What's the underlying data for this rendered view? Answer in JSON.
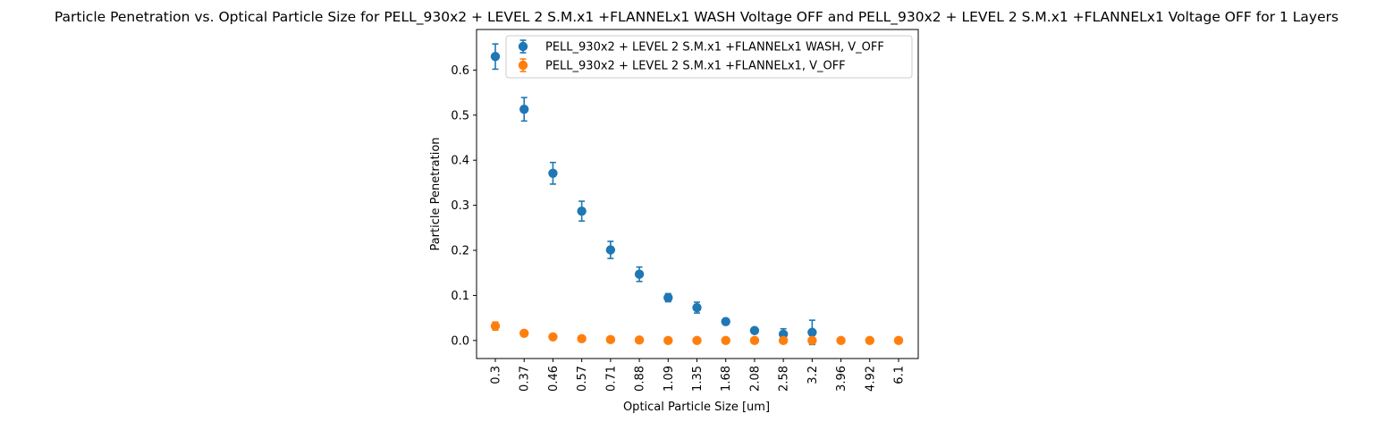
{
  "chart_data": {
    "type": "scatter",
    "title": "Particle Penetration vs. Optical Particle Size for PELL_930x2 + LEVEL 2 S.M.x1 +FLANNELx1 WASH Voltage OFF and PELL_930x2 + LEVEL 2 S.M.x1 +FLANNELx1 Voltage OFF for 1 Layers",
    "xlabel": "Optical Particle Size [um]",
    "ylabel": "Particle Penetration",
    "categories": [
      "0.3",
      "0.37",
      "0.46",
      "0.57",
      "0.71",
      "0.88",
      "1.09",
      "1.35",
      "1.68",
      "2.08",
      "2.58",
      "3.2",
      "3.96",
      "4.92",
      "6.1"
    ],
    "ylim": [
      -0.04,
      0.69
    ],
    "yticks": [
      "0.0",
      "0.1",
      "0.2",
      "0.3",
      "0.4",
      "0.5",
      "0.6"
    ],
    "legend_position": "top-right",
    "series": [
      {
        "name": "PELL_930x2 + LEVEL 2 S.M.x1 +FLANNELx1 WASH, V_OFF",
        "color": "#1f77b4",
        "values": [
          0.63,
          0.513,
          0.371,
          0.287,
          0.201,
          0.147,
          0.095,
          0.073,
          0.042,
          0.022,
          0.014,
          0.018,
          null,
          null,
          null
        ],
        "errors": [
          0.028,
          0.026,
          0.024,
          0.022,
          0.019,
          0.016,
          0.009,
          0.012,
          0.006,
          0.004,
          0.012,
          0.027,
          null,
          null,
          null
        ]
      },
      {
        "name": "PELL_930x2 + LEVEL 2 S.M.x1 +FLANNELx1, V_OFF",
        "color": "#ff7f0e",
        "values": [
          0.032,
          0.016,
          0.008,
          0.004,
          0.002,
          0.001,
          0.0,
          0.0,
          0.0,
          0.0,
          0.0,
          0.0,
          0.0,
          0.0,
          0.0
        ],
        "errors": [
          0.009,
          0.004,
          0.002,
          0.0,
          0.0,
          0.0,
          0.0,
          0.0,
          0.0,
          0.0,
          0.0,
          0.0,
          0.0,
          0.0,
          0.0
        ]
      }
    ]
  }
}
